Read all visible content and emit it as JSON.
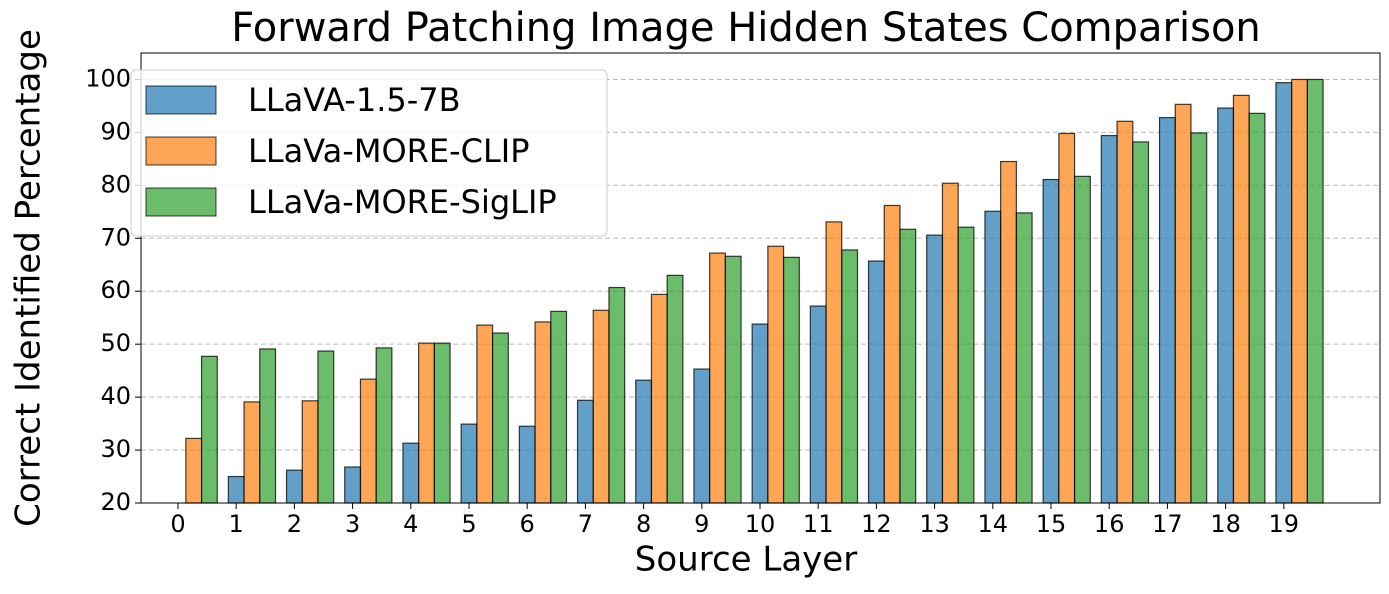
{
  "chart_data": {
    "type": "bar",
    "title": "Forward Patching Image Hidden States Comparison",
    "x_label": "Source Layer",
    "y_label": "Correct Identified Percentage",
    "categories": [
      "0",
      "1",
      "2",
      "3",
      "4",
      "5",
      "6",
      "7",
      "8",
      "9",
      "10",
      "11",
      "12",
      "13",
      "14",
      "15",
      "16",
      "17",
      "18",
      "19"
    ],
    "series": [
      {
        "name": "LLaVA-1.5-7B",
        "color": "#1f77b4",
        "values": [
          null,
          25.0,
          26.2,
          26.8,
          31.3,
          34.9,
          34.5,
          39.4,
          43.2,
          45.3,
          53.8,
          57.2,
          65.7,
          70.6,
          75.1,
          81.1,
          89.4,
          92.8,
          94.6,
          99.4
        ]
      },
      {
        "name": "LLaVa-MORE-CLIP",
        "color": "#ff7f0e",
        "values": [
          32.2,
          39.1,
          39.3,
          43.4,
          50.2,
          53.6,
          54.2,
          56.4,
          59.4,
          67.2,
          68.5,
          73.1,
          76.2,
          80.4,
          84.5,
          89.8,
          92.1,
          95.3,
          97.0,
          100
        ]
      },
      {
        "name": "LLaVa-MORE-SigLIP",
        "color": "#2ca02c",
        "values": [
          47.7,
          49.1,
          48.7,
          49.3,
          50.2,
          52.1,
          56.2,
          60.7,
          63.0,
          66.6,
          66.4,
          67.8,
          71.7,
          72.1,
          74.8,
          81.7,
          88.2,
          89.9,
          93.6,
          100
        ]
      }
    ],
    "ylim": [
      20,
      105
    ],
    "yticks": [
      20,
      30,
      40,
      50,
      60,
      70,
      80,
      90,
      100
    ],
    "grid": true,
    "legend": "upper-left"
  }
}
